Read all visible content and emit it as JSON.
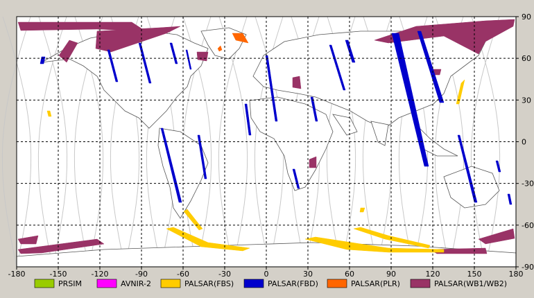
{
  "map": {
    "x_ticks": [
      "-180",
      "-150",
      "-120",
      "-90",
      "-60",
      "-30",
      "0",
      "30",
      "60",
      "90",
      "120",
      "150",
      "180"
    ],
    "y_ticks": [
      "90",
      "60",
      "30",
      "0",
      "-30",
      "-60",
      "-90"
    ],
    "colors": {
      "background": "#d4d0c8",
      "plot_bg": "#ffffff",
      "coast": "#555555",
      "orbit": "#bdbdbd",
      "grid": "#000000"
    }
  },
  "legend": [
    {
      "label": "PRSIM",
      "color": "#99cc00"
    },
    {
      "label": "AVNIR-2",
      "color": "#ff00ff"
    },
    {
      "label": "PALSAR(FBS)",
      "color": "#ffcc00"
    },
    {
      "label": "PALSAR(FBD)",
      "color": "#0000cc"
    },
    {
      "label": "PALSAR(PLR)",
      "color": "#ff6600"
    },
    {
      "label": "PALSAR(WB1/WB2)",
      "color": "#993366"
    }
  ]
}
